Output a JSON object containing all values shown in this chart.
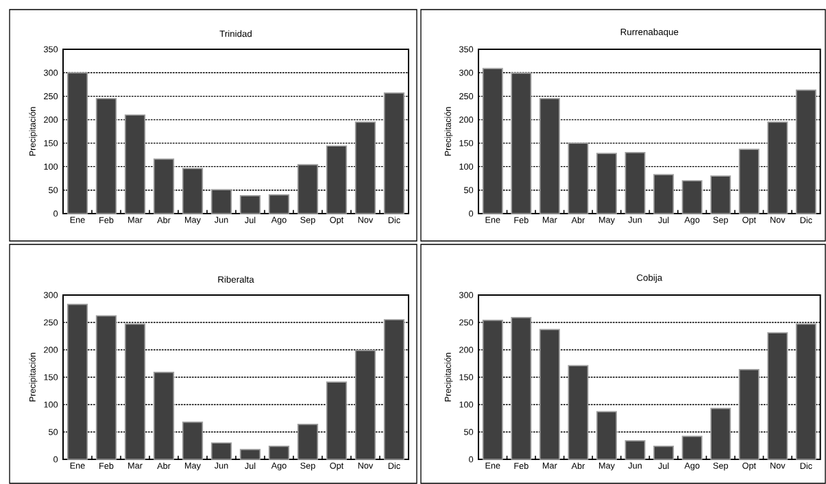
{
  "chart_data": [
    {
      "type": "bar",
      "title": "Trinidad",
      "ylabel": "Precipitación",
      "categories": [
        "Ene",
        "Feb",
        "Mar",
        "Abr",
        "May",
        "Jun",
        "Jul",
        "Ago",
        "Sep",
        "Opt",
        "Nov",
        "Dic"
      ],
      "values": [
        300,
        245,
        210,
        116,
        96,
        51,
        38,
        40,
        104,
        144,
        195,
        257
      ],
      "color": "#404040",
      "ylim": [
        0,
        350
      ],
      "yticks": [
        0,
        50,
        100,
        150,
        200,
        250,
        300,
        350
      ],
      "grid": "y"
    },
    {
      "type": "bar",
      "title": "Rurrenabaque",
      "ylabel": "Precipitación",
      "categories": [
        "Ene",
        "Feb",
        "Mar",
        "Abr",
        "May",
        "Jun",
        "Jul",
        "Ago",
        "Sep",
        "Opt",
        "Nov",
        "Dic"
      ],
      "values": [
        309,
        299,
        245,
        150,
        128,
        130,
        83,
        70,
        80,
        137,
        195,
        263
      ],
      "color": "#404040",
      "ylim": [
        0,
        350
      ],
      "yticks": [
        0,
        50,
        100,
        150,
        200,
        250,
        300,
        350
      ],
      "grid": "y"
    },
    {
      "type": "bar",
      "title": "Riberalta",
      "ylabel": "Precipitación",
      "categories": [
        "Ene",
        "Feb",
        "Mar",
        "Abr",
        "May",
        "Jun",
        "Jul",
        "Ago",
        "Sep",
        "Opt",
        "Nov",
        "Dic"
      ],
      "values": [
        283,
        262,
        247,
        159,
        68,
        30,
        18,
        24,
        64,
        141,
        199,
        255
      ],
      "color": "#404040",
      "ylim": [
        0,
        300
      ],
      "yticks": [
        0,
        50,
        100,
        150,
        200,
        250,
        300
      ],
      "grid": "y"
    },
    {
      "type": "bar",
      "title": "Cobija",
      "ylabel": "Precipitación",
      "categories": [
        "Ene",
        "Feb",
        "Mar",
        "Abr",
        "May",
        "Jun",
        "Jul",
        "Ago",
        "Sep",
        "Opt",
        "Nov",
        "Dic"
      ],
      "values": [
        254,
        259,
        237,
        171,
        87,
        34,
        24,
        42,
        93,
        164,
        231,
        247
      ],
      "color": "#404040",
      "ylim": [
        0,
        300
      ],
      "yticks": [
        0,
        50,
        100,
        150,
        200,
        250,
        300
      ],
      "grid": "y"
    }
  ]
}
